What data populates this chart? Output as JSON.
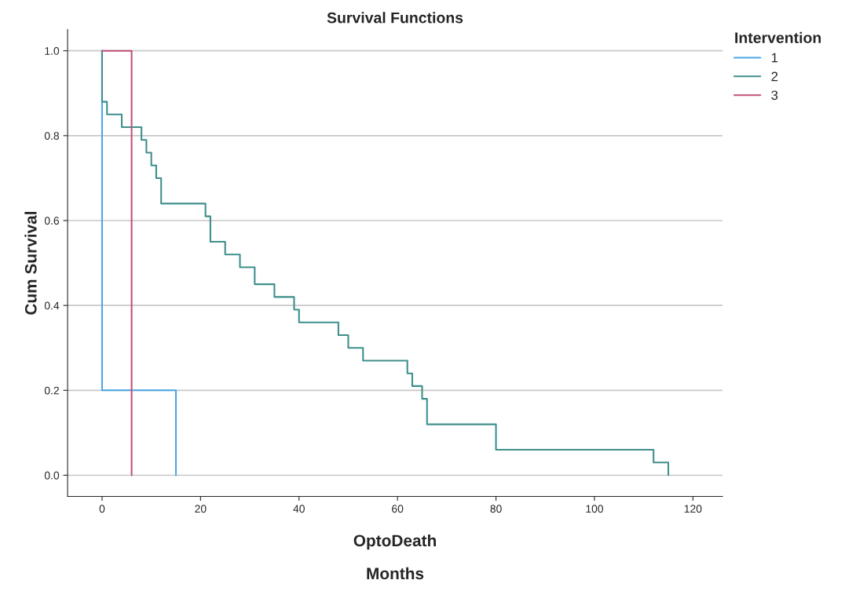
{
  "chart_data": {
    "type": "step",
    "title": "Survival Functions",
    "xlabel": "OptoDeath",
    "ylabel": "Cum Survival",
    "legend_title": "Intervention",
    "annotations": [
      "Months"
    ],
    "series": [
      {
        "name": "1",
        "color": "#4aa8e8",
        "x": [
          0,
          0,
          15,
          15
        ],
        "values": [
          1.0,
          0.2,
          0.2,
          0.0
        ]
      },
      {
        "name": "2",
        "color": "#3f8f8c",
        "x": [
          0,
          0,
          1,
          4,
          8,
          9,
          10,
          11,
          12,
          21,
          22,
          25,
          28,
          31,
          35,
          39,
          40,
          48,
          50,
          53,
          62,
          63,
          65,
          66,
          80,
          112,
          115,
          115
        ],
        "values": [
          1.0,
          0.88,
          0.85,
          0.82,
          0.79,
          0.76,
          0.73,
          0.7,
          0.64,
          0.61,
          0.55,
          0.52,
          0.49,
          0.45,
          0.42,
          0.39,
          0.36,
          0.33,
          0.3,
          0.27,
          0.24,
          0.21,
          0.18,
          0.12,
          0.06,
          0.03,
          0.0,
          0.0
        ]
      },
      {
        "name": "3",
        "color": "#c0507a",
        "x": [
          0,
          6,
          6
        ],
        "values": [
          1.0,
          0.0,
          0.0
        ]
      }
    ],
    "xlim": [
      -7,
      126
    ],
    "ylim": [
      -0.05,
      1.05
    ],
    "xticks": [
      0,
      20,
      40,
      60,
      80,
      100,
      120
    ],
    "yticks": [
      {
        "value": 0,
        "label": "0.0"
      },
      {
        "value": 0.2,
        "label": "0.2"
      },
      {
        "value": 0.4,
        "label": "0.4"
      },
      {
        "value": 0.6,
        "label": "0.6"
      },
      {
        "value": 0.8,
        "label": "0.8"
      },
      {
        "value": 1.0,
        "label": "1.0"
      }
    ],
    "grid": "y",
    "legend": "top right"
  }
}
